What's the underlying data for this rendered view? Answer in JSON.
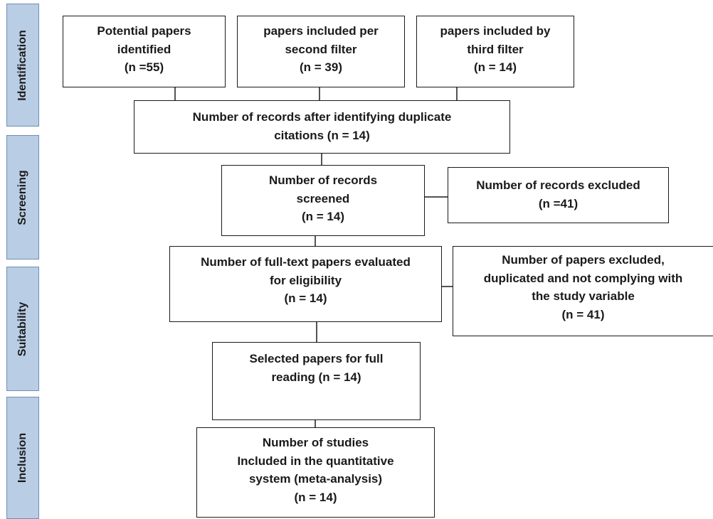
{
  "phases": {
    "identification": "Identification",
    "screening": "Screening",
    "suitability": "Suitability",
    "inclusion": "Inclusion"
  },
  "boxes": {
    "potential": {
      "line1": "Potential papers",
      "line2": "identified",
      "line3": "(n =55)"
    },
    "second_filter": {
      "line1": "papers included per",
      "line2": "second filter",
      "line3": "(n = 39)"
    },
    "third_filter": {
      "line1": "papers included by",
      "line2": "third filter",
      "line3": "(n = 14)"
    },
    "duplicates": {
      "line1": "Number of records after identifying duplicate",
      "line2": "citations (n = 14)"
    },
    "screened": {
      "line1": "Number of records",
      "line2": "screened",
      "line3": "(n = 14)"
    },
    "excluded": {
      "line1": "Number of records excluded",
      "line2": "(n =41)"
    },
    "fulltext": {
      "line1": "Number of full-text papers evaluated",
      "line2": "for eligibility",
      "line3": "(n = 14)"
    },
    "papers_excluded": {
      "line1": "Number of papers excluded,",
      "line2": "duplicated and not complying with",
      "line3": "the study variable",
      "line4": "(n = 41)"
    },
    "full_reading": {
      "line1": "Selected papers for full",
      "line2": "reading (n = 14)"
    },
    "studies_included": {
      "line1": "Number of studies",
      "line2": "Included in the quantitative",
      "line3": "system (meta-analysis)",
      "line4": "(n = 14)"
    }
  }
}
